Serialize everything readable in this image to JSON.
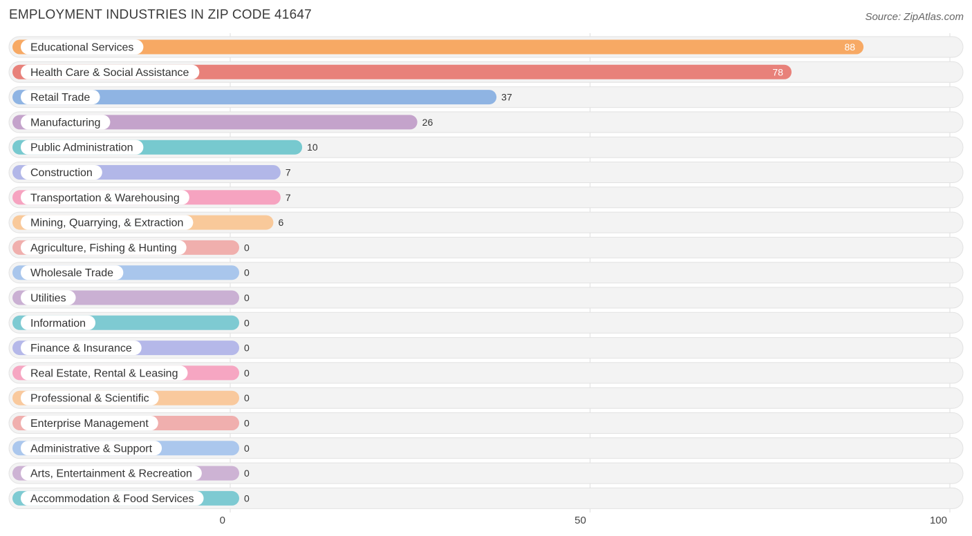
{
  "header": {
    "title": "EMPLOYMENT INDUSTRIES IN ZIP CODE 41647",
    "source": "Source: ZipAtlas.com"
  },
  "chart_data": {
    "type": "bar",
    "orientation": "horizontal",
    "title": "EMPLOYMENT INDUSTRIES IN ZIP CODE 41647",
    "xlim": [
      0,
      100
    ],
    "xticks": [
      0,
      50,
      100
    ],
    "grid": true,
    "categories": [
      "Educational Services",
      "Health Care & Social Assistance",
      "Retail Trade",
      "Manufacturing",
      "Public Administration",
      "Construction",
      "Transportation & Warehousing",
      "Mining, Quarrying, & Extraction",
      "Agriculture, Fishing & Hunting",
      "Wholesale Trade",
      "Utilities",
      "Information",
      "Finance & Insurance",
      "Real Estate, Rental & Leasing",
      "Professional & Scientific",
      "Enterprise Management",
      "Administrative & Support",
      "Arts, Entertainment & Recreation",
      "Accommodation & Food Services"
    ],
    "values": [
      88,
      78,
      37,
      26,
      10,
      7,
      7,
      6,
      0,
      0,
      0,
      0,
      0,
      0,
      0,
      0,
      0,
      0,
      0
    ],
    "colors": [
      "#f7a964",
      "#e8817a",
      "#8fb4e3",
      "#c4a3cb",
      "#77c9cf",
      "#b2b7e8",
      "#f6a3c0",
      "#f9c99a",
      "#f0afad",
      "#a9c6ec",
      "#cab0d3",
      "#7ecad2",
      "#b5b8e9",
      "#f6a6c2",
      "#f9c99d",
      "#f0afae",
      "#abc7ed",
      "#cdb3d4",
      "#7ecad2"
    ]
  }
}
